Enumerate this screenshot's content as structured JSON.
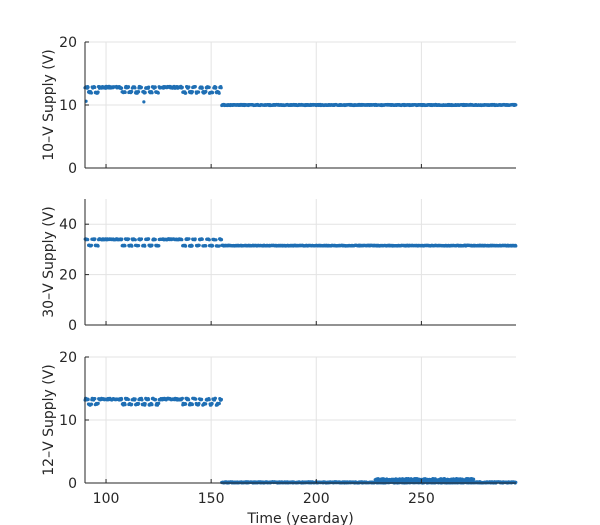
{
  "chart_data": [
    {
      "type": "scatter",
      "ylabel": "10–V Supply (V)",
      "xlim": [
        90,
        295
      ],
      "ylim": [
        0,
        20
      ],
      "x_ticks": [
        100,
        150,
        200,
        250
      ],
      "y_ticks": [
        0,
        10,
        20
      ],
      "y_tick_labels": [
        "0",
        "10",
        "20"
      ],
      "x_tick_labels": [],
      "grid": true,
      "marker_color": "#1f6fb4",
      "series": [
        {
          "segments": [
            {
              "x_start": 90,
              "x_end": 155,
              "levels": [
                12.0,
                12.8
              ],
              "noise": 0.15
            },
            {
              "x_start": 155,
              "x_end": 295,
              "levels": [
                10.0
              ],
              "noise": 0.08
            }
          ],
          "outliers": [
            {
              "x": 90.5,
              "y": 10.6
            },
            {
              "x": 118,
              "y": 10.5
            }
          ]
        }
      ]
    },
    {
      "type": "scatter",
      "ylabel": "30–V Supply (V)",
      "xlim": [
        90,
        295
      ],
      "ylim": [
        0,
        50
      ],
      "x_ticks": [
        100,
        150,
        200,
        250
      ],
      "y_ticks": [
        0,
        20,
        40
      ],
      "y_tick_labels": [
        "0",
        "20",
        "40"
      ],
      "x_tick_labels": [],
      "grid": true,
      "marker_color": "#1f6fb4",
      "series": [
        {
          "segments": [
            {
              "x_start": 90,
              "x_end": 155,
              "levels": [
                31.5,
                34.0
              ],
              "noise": 0.2
            },
            {
              "x_start": 155,
              "x_end": 295,
              "levels": [
                31.5
              ],
              "noise": 0.15
            }
          ],
          "outliers": []
        }
      ]
    },
    {
      "type": "scatter",
      "ylabel": "12–V Supply (V)",
      "xlabel": "Time (yearday)",
      "xlim": [
        90,
        295
      ],
      "ylim": [
        0,
        20
      ],
      "x_ticks": [
        100,
        150,
        200,
        250
      ],
      "y_ticks": [
        0,
        10,
        20
      ],
      "y_tick_labels": [
        "0",
        "10",
        "20"
      ],
      "x_tick_labels": [
        "100",
        "150",
        "200",
        "250"
      ],
      "grid": true,
      "marker_color": "#1f6fb4",
      "series": [
        {
          "segments": [
            {
              "x_start": 90,
              "x_end": 155,
              "levels": [
                12.5,
                13.3
              ],
              "noise": 0.15
            },
            {
              "x_start": 155,
              "x_end": 295,
              "levels": [
                0.1
              ],
              "noise": 0.1
            },
            {
              "x_start": 228,
              "x_end": 275,
              "levels": [
                0.5
              ],
              "noise": 0.2
            }
          ],
          "outliers": []
        }
      ]
    }
  ]
}
